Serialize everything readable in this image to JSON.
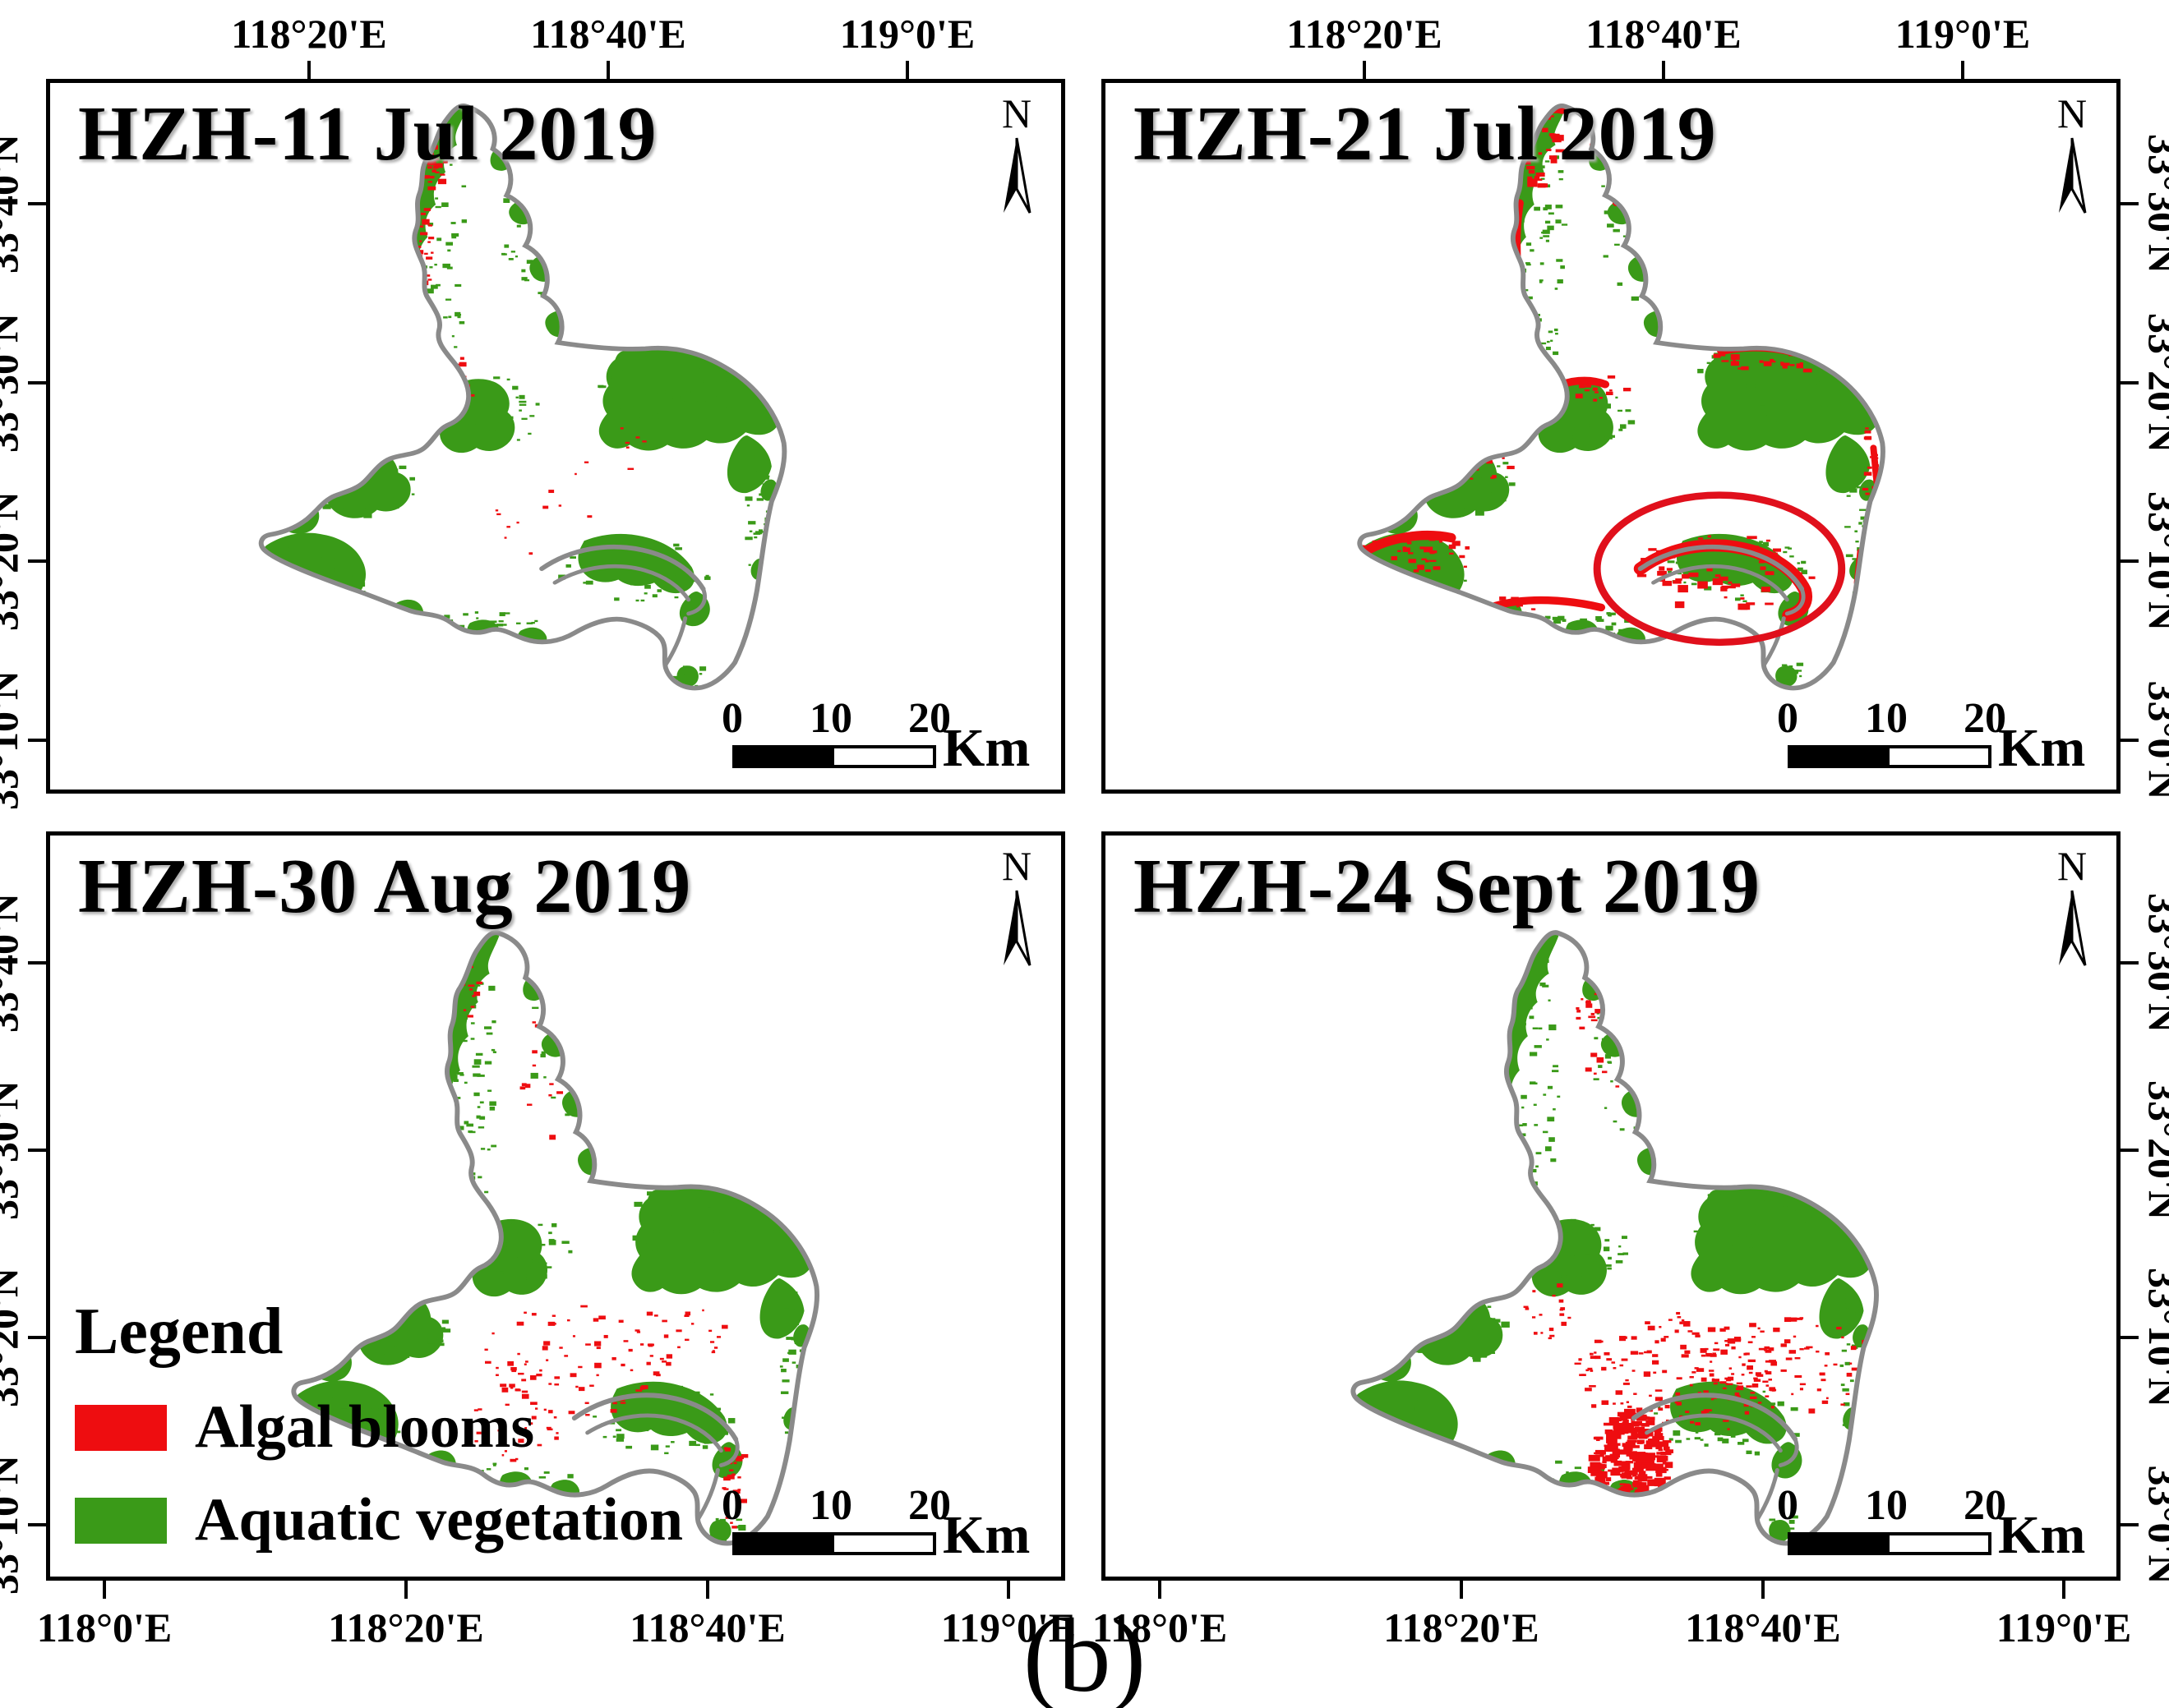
{
  "figure_label": "(b)",
  "north_arrow_label": "N",
  "colors": {
    "algal_blooms": "#ee0d10",
    "aquatic_vegetation": "#3a9a18",
    "shoreline_gray": "#8a8a8a",
    "highlight_ellipse_red": "#e0101c",
    "scalebar_black": "#000000"
  },
  "scalebar": {
    "tick_labels": [
      "0",
      "10",
      "20"
    ],
    "unit": "Km"
  },
  "legend": {
    "title": "Legend",
    "items": [
      {
        "label": "Algal blooms",
        "color": "#ee0d10"
      },
      {
        "label": "Aquatic vegetation",
        "color": "#3a9a18"
      }
    ]
  },
  "panels": [
    {
      "title": "HZH-11 Jul 2019",
      "lat_side": "left",
      "lat_labels": [
        "33°40'N",
        "33°30'N",
        "33°20'N",
        "33°10'N"
      ],
      "lon_side": "top",
      "lon_labels": [
        "118°20'E",
        "118°40'E",
        "119°0'E"
      ],
      "has_legend": false,
      "has_highlight_ellipse": false
    },
    {
      "title": "HZH-21 Jul 2019",
      "lat_side": "right",
      "lat_labels": [
        "33°30'N",
        "33°20'N",
        "33°10'N",
        "33°0'N"
      ],
      "lon_side": "top",
      "lon_labels": [
        "118°20'E",
        "118°40'E",
        "119°0'E"
      ],
      "has_legend": false,
      "has_highlight_ellipse": true
    },
    {
      "title": "HZH-30 Aug 2019",
      "lat_side": "left",
      "lat_labels": [
        "33°40'N",
        "33°30'N",
        "33°20'N",
        "33°10'N"
      ],
      "lon_side": "bottom",
      "lon_labels": [
        "118°0'E",
        "118°20'E",
        "118°40'E",
        "119°0'E"
      ],
      "has_legend": true,
      "has_highlight_ellipse": false
    },
    {
      "title": "HZH-24 Sept 2019",
      "lat_side": "right",
      "lat_labels": [
        "33°30'N",
        "33°20'N",
        "33°10'N",
        "33°0'N"
      ],
      "lon_side": "bottom",
      "lon_labels": [
        "118°0'E",
        "118°20'E",
        "118°40'E",
        "119°0'E"
      ],
      "has_legend": false,
      "has_highlight_ellipse": false
    }
  ]
}
